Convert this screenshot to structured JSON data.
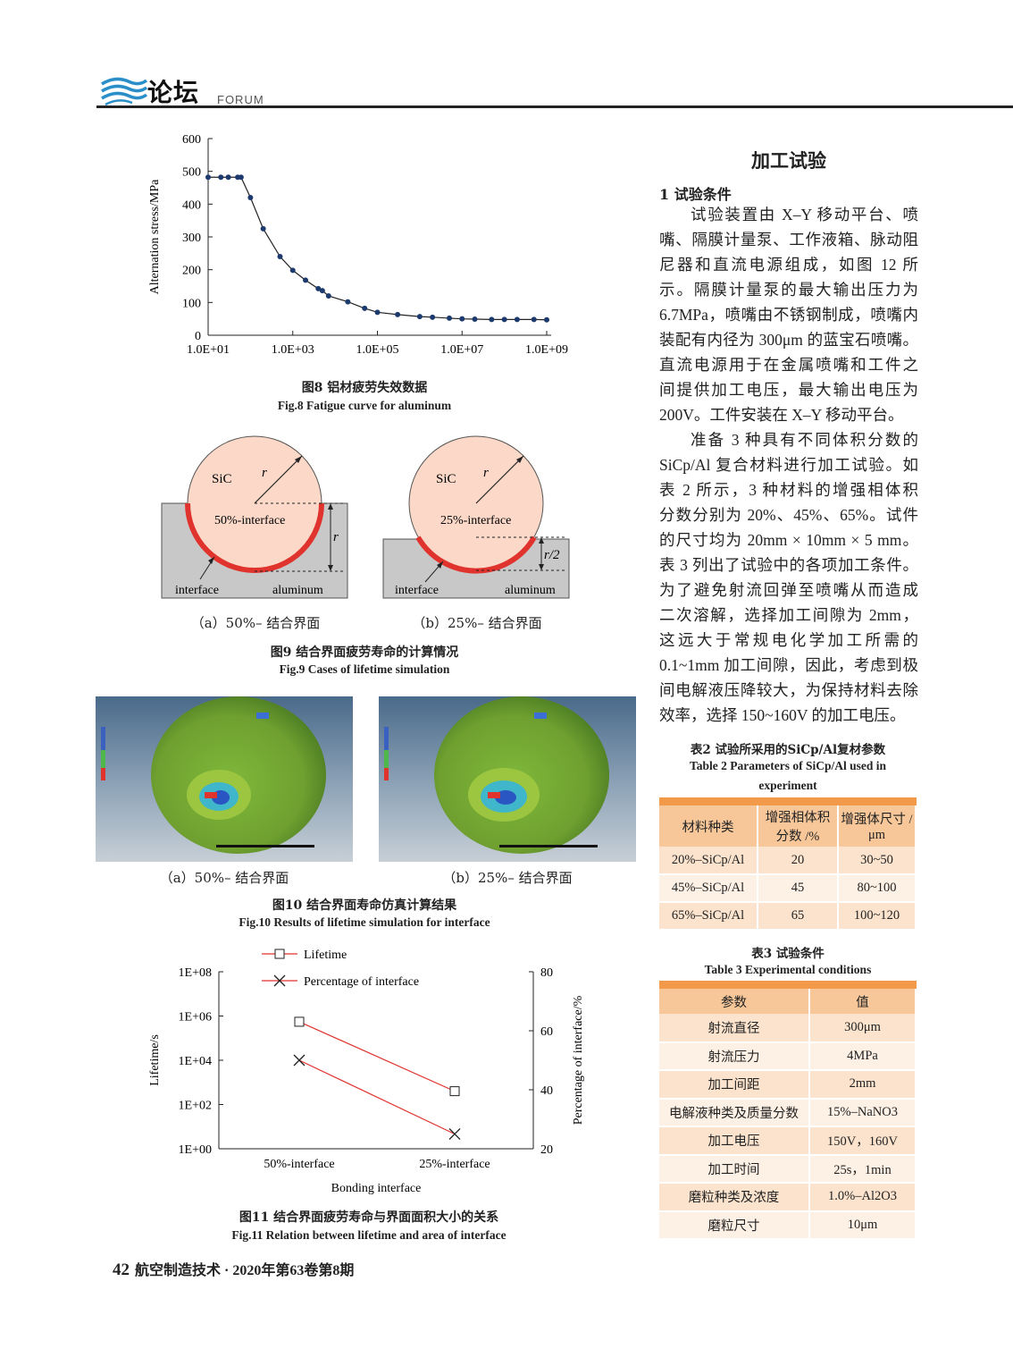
{
  "header": {
    "title": "论坛",
    "subtitle": "FORUM"
  },
  "fig8": {
    "caption_cn": "图8   铝材疲劳失效数据",
    "caption_en": "Fig.8    Fatigue curve for aluminum",
    "chart_data": {
      "type": "line",
      "ylabel": "Alternation stress/MPa",
      "xlabel": "",
      "x_scale": "log",
      "ylim": [
        0,
        600
      ],
      "yticks": [
        "0",
        "100",
        "200",
        "300",
        "400",
        "500",
        "600"
      ],
      "xticks": [
        "1.0E+01",
        "1.0E+03",
        "1.0E+05",
        "1.0E+07",
        "1.0E+09"
      ],
      "x": [
        10,
        20,
        30,
        50,
        60,
        100,
        200,
        500,
        1000,
        2000,
        4000,
        5000,
        7000,
        20000,
        50000,
        100000,
        300000,
        1000000,
        2000000,
        5000000,
        10000000,
        20000000,
        50000000,
        100000000,
        200000000,
        500000000,
        1000000000
      ],
      "values": [
        482,
        482,
        482,
        482,
        482,
        420,
        325,
        240,
        198,
        168,
        142,
        136,
        120,
        102,
        82,
        70,
        63,
        57,
        55,
        52,
        50,
        49,
        48,
        48,
        48,
        48,
        47
      ]
    }
  },
  "fig9": {
    "a": {
      "sic": "SiC",
      "r": "r",
      "iface_label": "50%-interface",
      "interface": "interface",
      "aluminum": "aluminum",
      "dim": "r",
      "sub": "（a）50%– 结合界面"
    },
    "b": {
      "sic": "SiC",
      "r": "r",
      "iface_label": "25%-interface",
      "interface": "interface",
      "aluminum": "aluminum",
      "dim": "r/2",
      "sub": "（b）25%– 结合界面"
    },
    "caption_cn": "图9   结合界面疲劳寿命的计算情况",
    "caption_en": "Fig.9    Cases of lifetime simulation"
  },
  "fig10": {
    "a": {
      "sub": "（a）50%– 结合界面"
    },
    "b": {
      "sub": "（b）25%– 结合界面"
    },
    "caption_cn": "图10   结合界面寿命仿真计算结果",
    "caption_en": "Fig.10    Results of lifetime simulation for interface"
  },
  "fig11": {
    "caption_cn": "图11   结合界面疲劳寿命与界面面积大小的关系",
    "caption_en": "Fig.11    Relation between lifetime and area of interface",
    "chart_data": {
      "type": "line",
      "categories": [
        "50%-interface",
        "25%-interface"
      ],
      "xlabel": "Bonding interface",
      "ylabel_left": "Lifetime/s",
      "ylabel_right": "Percentage of interface/%",
      "left_ticks": [
        "1E+00",
        "1E+02",
        "1E+04",
        "1E+06",
        "1E+08"
      ],
      "right_ticks": [
        "20",
        "40",
        "60",
        "80"
      ],
      "left_scale": "log",
      "left_ylim": [
        1,
        100000000
      ],
      "right_ylim": [
        20,
        80
      ],
      "series": [
        {
          "name": "Lifetime",
          "axis": "left",
          "marker": "square",
          "values": [
            550000,
            400
          ]
        },
        {
          "name": "Percentage of interface",
          "axis": "right",
          "marker": "x",
          "values": [
            50,
            25
          ]
        }
      ],
      "color": "#e0332e"
    }
  },
  "right": {
    "section_title": "加工试验",
    "subsection": "1   试验条件",
    "p1": [
      "试验装置由 X–Y 移动平台、喷",
      "嘴、隔膜计量泵、工作液箱、脉动阻",
      "尼器和直流电源组成，如图 12 所",
      "示。隔膜计量泵的最大输出压力为",
      "6.7MPa，喷嘴由不锈钢制成，喷嘴内",
      "装配有内径为 300μm 的蓝宝石喷嘴。",
      "直流电源用于在金属喷嘴和工件之",
      "间提供加工电压，最大输出电压为",
      "200V。工件安装在 X–Y 移动平台。"
    ],
    "p2": [
      "准备 3 种具有不同体积分数的",
      "SiCp/Al 复合材料进行加工试验。如",
      "表 2 所示，3 种材料的增强相体积",
      "分数分别为 20%、45%、65%。试件",
      "的尺寸均为 20mm × 10mm × 5 mm。",
      "表 3 列出了试验中的各项加工条件。",
      "为了避免射流回弹至喷嘴从而造成",
      "二次溶解，选择加工间隙为 2mm，",
      "这远大于常规电化学加工所需的",
      "0.1~1mm 加工间隙，因此，考虑到极",
      "间电解液压降较大，为保持材料去除",
      "效率，选择 150~160V 的加工电压。"
    ]
  },
  "table2": {
    "caption_cn": "表2   试验所采用的SiCp/Al复材参数",
    "caption_en_1": "Table 2    Parameters of SiCp/Al used in",
    "caption_en_2": "experiment",
    "headers": [
      "材料种类",
      "增强相体积分数 /%",
      "增强体尺寸 /μm"
    ],
    "rows": [
      [
        "20%–SiCp/Al",
        "20",
        "30~50"
      ],
      [
        "45%–SiCp/Al",
        "45",
        "80~100"
      ],
      [
        "65%–SiCp/Al",
        "65",
        "100~120"
      ]
    ]
  },
  "table3": {
    "caption_cn": "表3   试验条件",
    "caption_en": "Table 3    Experimental conditions",
    "headers": [
      "参数",
      "值"
    ],
    "rows": [
      [
        "射流直径",
        "300μm"
      ],
      [
        "射流压力",
        "4MPa"
      ],
      [
        "加工间距",
        "2mm"
      ],
      [
        "电解液种类及质量分数",
        "15%–NaNO3"
      ],
      [
        "加工电压",
        "150V，160V"
      ],
      [
        "加工时间",
        "25s，1min"
      ],
      [
        "磨粒种类及浓度",
        "1.0%–Al2O3"
      ],
      [
        "磨粒尺寸",
        "10μm"
      ]
    ]
  },
  "footer": {
    "page": "42",
    "text": "航空制造技术 · 2020年第63卷第8期"
  }
}
